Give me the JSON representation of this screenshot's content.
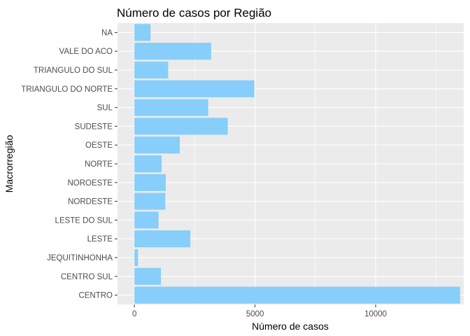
{
  "chart_data": {
    "type": "bar",
    "orientation": "horizontal",
    "title": "Número de casos por Região",
    "xlabel": "Número de casos",
    "ylabel": "Macrorregião",
    "categories": [
      "CENTRO",
      "CENTRO SUL",
      "JEQUITINHONHA",
      "LESTE",
      "LESTE DO SUL",
      "NORDESTE",
      "NOROESTE",
      "NORTE",
      "OESTE",
      "SUDESTE",
      "SUL",
      "TRIANGULO DO NORTE",
      "TRIANGULO DO SUL",
      "VALE DO ACO",
      "NA"
    ],
    "values": [
      13500,
      1100,
      150,
      2320,
      1000,
      1280,
      1300,
      1130,
      1880,
      3870,
      3060,
      4970,
      1400,
      3180,
      670
    ],
    "xlim": [
      -700,
      13650
    ],
    "xticks": [
      0,
      5000,
      10000
    ],
    "xtick_labels": [
      "0",
      "5000",
      "10000"
    ],
    "grid": true,
    "colors": {
      "bar": "#87cefa",
      "panel": "#ebebeb",
      "grid": "#ffffff"
    }
  }
}
